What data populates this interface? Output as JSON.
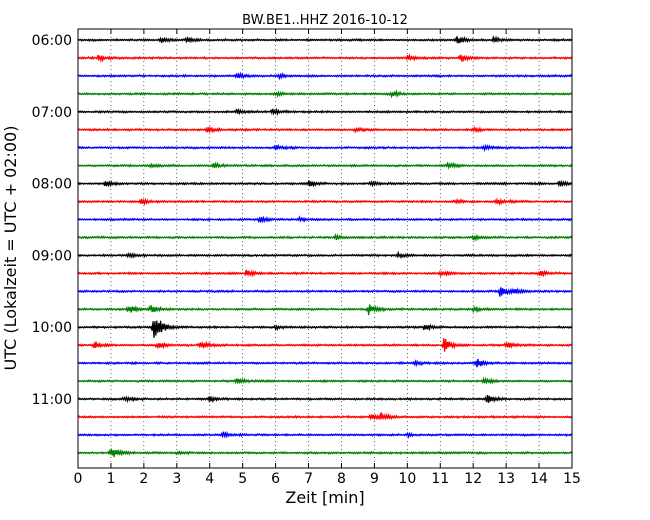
{
  "chart_data": {
    "type": "line",
    "title": "BW.BE1..HHZ 2016-10-12",
    "xlabel": "Zeit  [min]",
    "ylabel": "UTC (Lokalzeit = UTC + 02:00)",
    "xlim": [
      0,
      15
    ],
    "x_ticks": [
      "0",
      "1",
      "2",
      "3",
      "4",
      "5",
      "6",
      "7",
      "8",
      "9",
      "10",
      "11",
      "12",
      "13",
      "14",
      "15"
    ],
    "hour_labels": [
      "06:00",
      "07:00",
      "08:00",
      "09:00",
      "10:00",
      "11:00"
    ],
    "traces_per_hour": 4,
    "trace_minutes": 15,
    "colors": [
      "#000000",
      "#ff0000",
      "#0000ff",
      "#008000"
    ],
    "vertical_grid": "dotted",
    "traces": [
      {
        "start": "06:00",
        "events": [
          {
            "t": 2.5,
            "amp": 0.25
          },
          {
            "t": 3.3,
            "amp": 0.3
          },
          {
            "t": 11.5,
            "amp": 0.4
          },
          {
            "t": 12.6,
            "amp": 0.25
          }
        ]
      },
      {
        "start": "06:15",
        "events": [
          {
            "t": 0.6,
            "amp": 0.3
          },
          {
            "t": 10.0,
            "amp": 0.25
          },
          {
            "t": 11.6,
            "amp": 0.4
          }
        ]
      },
      {
        "start": "06:30",
        "events": [
          {
            "t": 4.8,
            "amp": 0.3
          },
          {
            "t": 6.1,
            "amp": 0.2
          }
        ]
      },
      {
        "start": "06:45",
        "events": [
          {
            "t": 9.5,
            "amp": 0.35
          },
          {
            "t": 6.0,
            "amp": 0.15
          }
        ]
      },
      {
        "start": "07:00",
        "events": [
          {
            "t": 4.8,
            "amp": 0.25
          },
          {
            "t": 5.9,
            "amp": 0.25
          }
        ]
      },
      {
        "start": "07:15",
        "events": [
          {
            "t": 3.9,
            "amp": 0.3
          },
          {
            "t": 8.4,
            "amp": 0.2
          },
          {
            "t": 12.0,
            "amp": 0.2
          }
        ]
      },
      {
        "start": "07:30",
        "events": [
          {
            "t": 6.0,
            "amp": 0.2
          },
          {
            "t": 12.3,
            "amp": 0.2
          }
        ]
      },
      {
        "start": "07:45",
        "events": [
          {
            "t": 2.2,
            "amp": 0.2
          },
          {
            "t": 4.1,
            "amp": 0.2
          },
          {
            "t": 11.2,
            "amp": 0.25
          }
        ]
      },
      {
        "start": "08:00",
        "events": [
          {
            "t": 0.8,
            "amp": 0.3
          },
          {
            "t": 7.0,
            "amp": 0.3
          },
          {
            "t": 8.9,
            "amp": 0.25
          },
          {
            "t": 14.6,
            "amp": 0.3
          }
        ]
      },
      {
        "start": "08:15",
        "events": [
          {
            "t": 1.9,
            "amp": 0.3
          },
          {
            "t": 12.7,
            "amp": 0.3
          },
          {
            "t": 11.5,
            "amp": 0.2
          }
        ]
      },
      {
        "start": "08:30",
        "events": [
          {
            "t": 5.5,
            "amp": 0.25
          },
          {
            "t": 6.7,
            "amp": 0.15
          }
        ]
      },
      {
        "start": "08:45",
        "events": [
          {
            "t": 7.8,
            "amp": 0.25
          },
          {
            "t": 12.0,
            "amp": 0.2
          }
        ]
      },
      {
        "start": "09:00",
        "events": [
          {
            "t": 1.5,
            "amp": 0.2
          },
          {
            "t": 9.7,
            "amp": 0.2
          }
        ]
      },
      {
        "start": "09:15",
        "events": [
          {
            "t": 5.1,
            "amp": 0.3
          },
          {
            "t": 14.0,
            "amp": 0.3
          },
          {
            "t": 11.0,
            "amp": 0.2
          }
        ]
      },
      {
        "start": "09:30",
        "events": [
          {
            "t": 12.8,
            "amp": 0.55
          },
          {
            "t": 13.2,
            "amp": 0.25
          }
        ]
      },
      {
        "start": "09:45",
        "events": [
          {
            "t": 1.5,
            "amp": 0.5
          },
          {
            "t": 2.2,
            "amp": 0.35
          },
          {
            "t": 8.8,
            "amp": 0.6
          },
          {
            "t": 12.0,
            "amp": 0.2
          }
        ]
      },
      {
        "start": "10:00",
        "events": [
          {
            "t": 2.3,
            "amp": 1.7
          },
          {
            "t": 10.5,
            "amp": 0.25
          },
          {
            "t": 6.0,
            "amp": 0.15
          }
        ]
      },
      {
        "start": "10:15",
        "events": [
          {
            "t": 0.5,
            "amp": 0.35
          },
          {
            "t": 2.4,
            "amp": 0.35
          },
          {
            "t": 3.7,
            "amp": 0.4
          },
          {
            "t": 11.1,
            "amp": 0.8
          },
          {
            "t": 13.0,
            "amp": 0.35
          }
        ]
      },
      {
        "start": "10:30",
        "events": [
          {
            "t": 12.1,
            "amp": 0.5
          },
          {
            "t": 10.2,
            "amp": 0.2
          }
        ]
      },
      {
        "start": "10:45",
        "events": [
          {
            "t": 4.8,
            "amp": 0.25
          },
          {
            "t": 12.3,
            "amp": 0.3
          }
        ]
      },
      {
        "start": "11:00",
        "events": [
          {
            "t": 1.4,
            "amp": 0.25
          },
          {
            "t": 4.0,
            "amp": 0.25
          },
          {
            "t": 12.4,
            "amp": 0.45
          }
        ]
      },
      {
        "start": "11:15",
        "events": [
          {
            "t": 9.2,
            "amp": 0.35
          },
          {
            "t": 8.9,
            "amp": 0.25
          }
        ]
      },
      {
        "start": "11:30",
        "events": [
          {
            "t": 4.4,
            "amp": 0.25
          },
          {
            "t": 10.0,
            "amp": 0.15
          }
        ]
      },
      {
        "start": "11:45",
        "events": [
          {
            "t": 1.0,
            "amp": 0.6
          },
          {
            "t": 3.0,
            "amp": 0.15
          }
        ]
      }
    ]
  }
}
